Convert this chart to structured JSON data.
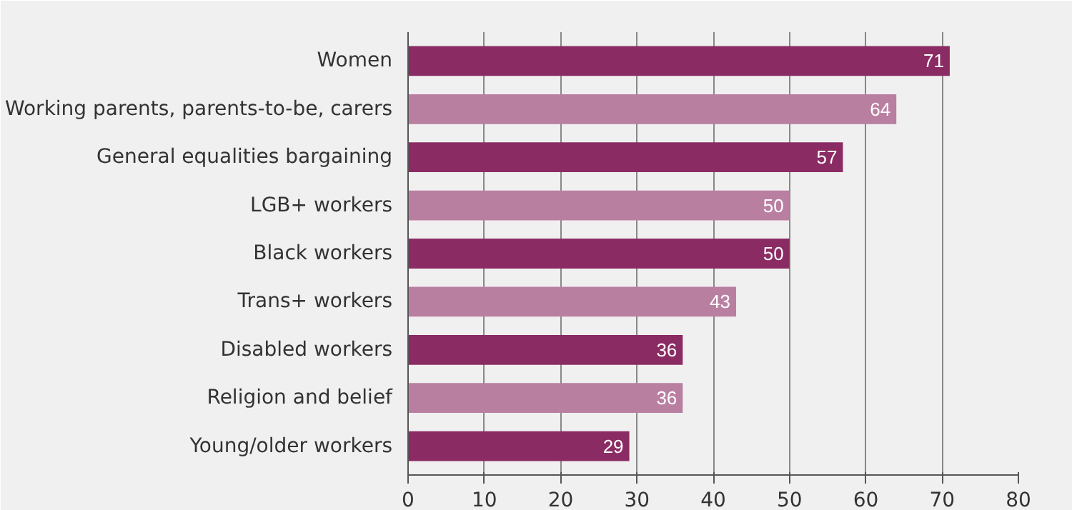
{
  "chart_data": {
    "type": "bar",
    "orientation": "horizontal",
    "categories": [
      "Women",
      "Working parents, parents-to-be, carers",
      "General equalities bargaining",
      "LGB+ workers",
      "Black workers",
      "Trans+ workers",
      "Disabled workers",
      "Religion and belief",
      "Young/older workers"
    ],
    "values": [
      71,
      64,
      57,
      50,
      50,
      43,
      36,
      36,
      29
    ],
    "colors": [
      "#8b2b63",
      "#b97fa1",
      "#8b2b63",
      "#b97fa1",
      "#8b2b63",
      "#b97fa1",
      "#8b2b63",
      "#b97fa1",
      "#8b2b63"
    ],
    "xlim": [
      0,
      80
    ],
    "xticks": [
      0,
      10,
      20,
      30,
      40,
      50,
      60,
      70,
      80
    ],
    "grid": "x",
    "data_labels": true
  }
}
